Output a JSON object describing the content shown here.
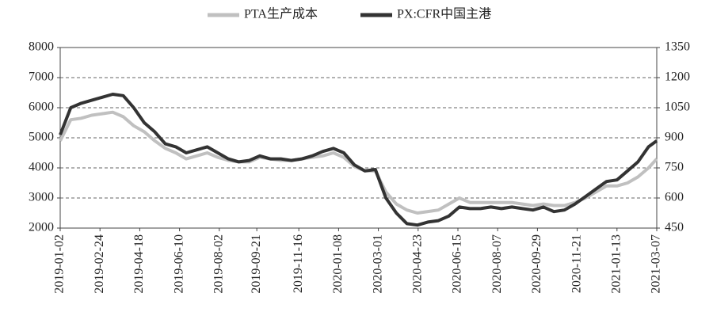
{
  "chart_data": {
    "type": "line",
    "x": [
      "2019-01-02",
      "2019-01-16",
      "2019-01-30",
      "2019-02-13",
      "2019-02-27",
      "2019-03-13",
      "2019-03-27",
      "2019-04-10",
      "2019-04-24",
      "2019-05-08",
      "2019-05-22",
      "2019-06-05",
      "2019-06-19",
      "2019-07-03",
      "2019-07-17",
      "2019-07-31",
      "2019-08-14",
      "2019-08-28",
      "2019-09-11",
      "2019-09-25",
      "2019-10-09",
      "2019-10-23",
      "2019-11-06",
      "2019-11-20",
      "2019-12-04",
      "2019-12-18",
      "2020-01-01",
      "2020-01-15",
      "2020-01-29",
      "2020-02-12",
      "2020-02-26",
      "2020-03-11",
      "2020-03-25",
      "2020-04-08",
      "2020-04-22",
      "2020-05-06",
      "2020-05-20",
      "2020-06-03",
      "2020-06-17",
      "2020-07-01",
      "2020-07-15",
      "2020-07-29",
      "2020-08-12",
      "2020-08-26",
      "2020-09-09",
      "2020-09-23",
      "2020-10-07",
      "2020-10-21",
      "2020-11-04",
      "2020-11-18",
      "2020-12-02",
      "2020-12-16",
      "2020-12-30",
      "2021-01-13",
      "2021-01-27",
      "2021-02-10",
      "2021-02-24",
      "2021-03-07"
    ],
    "series": [
      {
        "name": "PTA生产成本",
        "color": "#c0c0c0",
        "values": [
          4900,
          5600,
          5650,
          5750,
          5800,
          5850,
          5700,
          5400,
          5200,
          4900,
          4650,
          4500,
          4300,
          4400,
          4500,
          4350,
          4250,
          4200,
          4200,
          4350,
          4300,
          4250,
          4250,
          4300,
          4350,
          4400,
          4500,
          4350,
          4050,
          3900,
          3900,
          3200,
          2800,
          2600,
          2500,
          2550,
          2600,
          2800,
          3000,
          2850,
          2850,
          2850,
          2850,
          2850,
          2800,
          2750,
          2800,
          2750,
          2750,
          2850,
          3000,
          3200,
          3400,
          3400,
          3500,
          3700,
          4000,
          4300
        ]
      },
      {
        "name": "PX:CFR中国主港",
        "color": "#333333",
        "axis": "y2",
        "values": [
          915,
          1050,
          1072,
          1087,
          1102,
          1117,
          1110,
          1050,
          975,
          930,
          870,
          855,
          825,
          840,
          855,
          825,
          795,
          780,
          787,
          810,
          795,
          795,
          787,
          795,
          810,
          832,
          847,
          825,
          765,
          735,
          742,
          600,
          525,
          472,
          465,
          480,
          487,
          510,
          555,
          547,
          547,
          555,
          547,
          555,
          547,
          540,
          555,
          532,
          540,
          570,
          607,
          645,
          682,
          690,
          735,
          780,
          855,
          885
        ]
      }
    ],
    "xlim": [
      "2019-01-02",
      "2021-03-07"
    ],
    "xticks": [
      "2019-01-02",
      "2019-02-24",
      "2019-04-18",
      "2019-06-10",
      "2019-08-02",
      "2019-09-21",
      "2019-11-16",
      "2020-01-08",
      "2020-03-01",
      "2020-04-23",
      "2020-06-15",
      "2020-08-07",
      "2020-09-29",
      "2020-11-21",
      "2021-01-13",
      "2021-03-07"
    ],
    "ylim": [
      2000,
      8000
    ],
    "yticks": [
      2000,
      3000,
      4000,
      5000,
      6000,
      7000,
      8000
    ],
    "y2lim": [
      450,
      1350
    ],
    "y2ticks": [
      450,
      600,
      750,
      900,
      1050,
      1200,
      1350
    ],
    "grid": true
  }
}
